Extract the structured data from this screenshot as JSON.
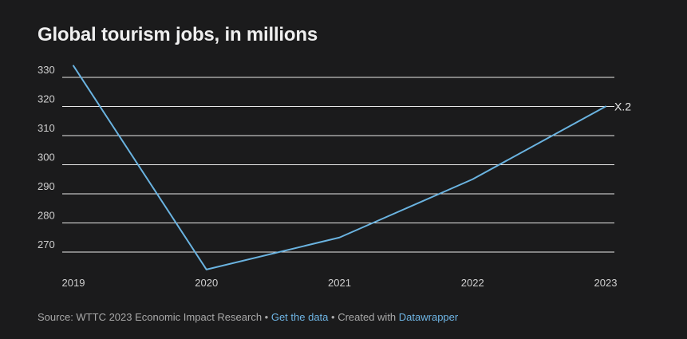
{
  "colors": {
    "background": "#1b1b1c",
    "line": "#6ab3e0",
    "grid": "#e8e8e8",
    "text": "#cfcfcf",
    "link": "#6fb6e6"
  },
  "footer": {
    "source_label": "Source: WTTC 2023 Economic Impact Research",
    "separator": " • ",
    "get_data_label": "Get the data",
    "created_with_label": "Created with ",
    "datawrapper_label": "Datawrapper"
  },
  "chart_data": {
    "type": "line",
    "title": "Global tourism jobs, in millions",
    "xlabel": "",
    "ylabel": "",
    "x": [
      "2019",
      "2020",
      "2021",
      "2022",
      "2023"
    ],
    "series": [
      {
        "name": "Global tourism jobs",
        "values": [
          334,
          264,
          275,
          295,
          320
        ]
      }
    ],
    "yticks": [
      270,
      280,
      290,
      300,
      310,
      320,
      330
    ],
    "ytick_labels": [
      "270",
      "280",
      "290",
      "300",
      "310",
      "320",
      "330"
    ],
    "ylim": [
      264,
      334
    ],
    "annotations": [
      {
        "x": "2023",
        "y": 320,
        "text": "X.2"
      }
    ],
    "grid": true
  }
}
